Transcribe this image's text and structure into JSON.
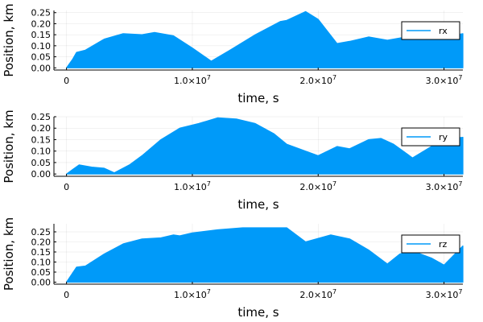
{
  "figure": {
    "background": "#ffffff",
    "series_color": "#009af9"
  },
  "chart_data": [
    {
      "type": "area",
      "series": [
        {
          "name": "rx",
          "x": [
            0,
            500000,
            800000,
            1500000,
            3000000,
            4500000,
            6000000,
            7000000,
            8500000,
            10000000,
            11500000,
            13000000,
            15000000,
            17000000,
            17500000,
            19000000,
            20000000,
            21500000,
            22500000,
            24000000,
            25500000,
            27000000,
            28500000,
            30000000,
            31500000
          ],
          "values": [
            0.0,
            0.04,
            0.07,
            0.08,
            0.13,
            0.155,
            0.15,
            0.16,
            0.145,
            0.09,
            0.03,
            0.08,
            0.15,
            0.21,
            0.215,
            0.255,
            0.22,
            0.11,
            0.12,
            0.14,
            0.125,
            0.14,
            0.135,
            0.14,
            0.155
          ]
        }
      ],
      "xlabel": "time, s",
      "ylabel": "Position, km",
      "xlim": [
        -1000000,
        31500000
      ],
      "ylim": [
        -0.01,
        0.26
      ],
      "xticks": [
        0,
        10000000,
        20000000,
        30000000
      ],
      "yticks": [
        0.0,
        0.05,
        0.1,
        0.15,
        0.2,
        0.25
      ],
      "xticklabels": [
        {
          "base": "0",
          "exp": ""
        },
        {
          "base": "1.0×10",
          "exp": "7"
        },
        {
          "base": "2.0×10",
          "exp": "7"
        },
        {
          "base": "3.0×10",
          "exp": "7"
        }
      ],
      "yticklabels": [
        "0.00",
        "0.05",
        "0.10",
        "0.15",
        "0.20",
        "0.25"
      ],
      "grid": true,
      "legend": "top-right"
    },
    {
      "type": "area",
      "series": [
        {
          "name": "ry",
          "x": [
            0,
            500000,
            1000000,
            2000000,
            3000000,
            3800000,
            5000000,
            6000000,
            7500000,
            9000000,
            10500000,
            12000000,
            13500000,
            15000000,
            16500000,
            17500000,
            20000000,
            21500000,
            22500000,
            24000000,
            25000000,
            26000000,
            27500000,
            29000000,
            30500000,
            31500000
          ],
          "values": [
            0.0,
            0.02,
            0.04,
            0.03,
            0.025,
            0.005,
            0.04,
            0.08,
            0.15,
            0.2,
            0.22,
            0.245,
            0.24,
            0.22,
            0.175,
            0.13,
            0.08,
            0.12,
            0.11,
            0.15,
            0.155,
            0.13,
            0.07,
            0.12,
            0.155,
            0.16
          ]
        }
      ],
      "xlabel": "time, s",
      "ylabel": "Position, km",
      "xlim": [
        -1000000,
        31500000
      ],
      "ylim": [
        -0.01,
        0.25
      ],
      "xticks": [
        0,
        10000000,
        20000000,
        30000000
      ],
      "yticks": [
        0.0,
        0.05,
        0.1,
        0.15,
        0.2,
        0.25
      ],
      "xticklabels": [
        {
          "base": "0",
          "exp": ""
        },
        {
          "base": "1.0×10",
          "exp": "7"
        },
        {
          "base": "2.0×10",
          "exp": "7"
        },
        {
          "base": "3.0×10",
          "exp": "7"
        }
      ],
      "yticklabels": [
        "0.00",
        "0.05",
        "0.10",
        "0.15",
        "0.20",
        "0.25"
      ],
      "grid": true,
      "legend": "top-right"
    },
    {
      "type": "area",
      "series": [
        {
          "name": "rz",
          "x": [
            0,
            800000,
            1500000,
            3000000,
            4500000,
            6000000,
            7500000,
            8500000,
            9000000,
            10000000,
            12000000,
            14000000,
            16000000,
            17500000,
            19000000,
            21000000,
            22500000,
            24000000,
            25500000,
            26500000,
            27500000,
            29000000,
            30000000,
            31500000
          ],
          "values": [
            0.0,
            0.075,
            0.08,
            0.14,
            0.19,
            0.215,
            0.22,
            0.235,
            0.23,
            0.245,
            0.26,
            0.27,
            0.27,
            0.27,
            0.2,
            0.235,
            0.215,
            0.16,
            0.09,
            0.14,
            0.155,
            0.12,
            0.085,
            0.18
          ]
        }
      ],
      "xlabel": "time, s",
      "ylabel": "Position, km",
      "xlim": [
        -1000000,
        31500000
      ],
      "ylim": [
        -0.01,
        0.29
      ],
      "xticks": [
        0,
        10000000,
        20000000,
        30000000
      ],
      "yticks": [
        0.0,
        0.05,
        0.1,
        0.15,
        0.2,
        0.25
      ],
      "xticklabels": [
        {
          "base": "0",
          "exp": ""
        },
        {
          "base": "1.0×10",
          "exp": "7"
        },
        {
          "base": "2.0×10",
          "exp": "7"
        },
        {
          "base": "3.0×10",
          "exp": "7"
        }
      ],
      "yticklabels": [
        "0.00",
        "0.05",
        "0.10",
        "0.15",
        "0.20",
        "0.25"
      ],
      "grid": true,
      "legend": "top-right"
    }
  ]
}
